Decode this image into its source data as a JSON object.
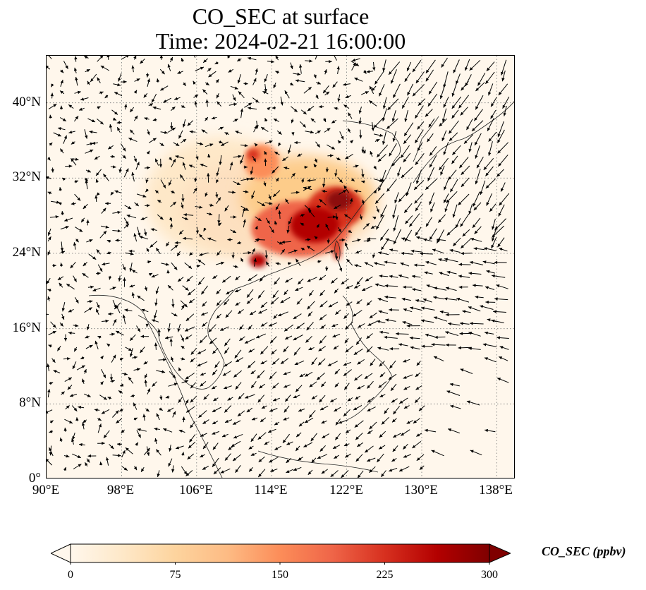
{
  "title": {
    "line1": "CO_SEC at surface",
    "line2": "Time: 2024-02-21 16:00:00"
  },
  "map": {
    "projection": "PlateCarree",
    "lon_range": [
      90,
      140
    ],
    "lat_range": [
      0,
      45
    ],
    "gridlines": "dotted",
    "lat_ticks": [
      "0°",
      "8°N",
      "16°N",
      "24°N",
      "32°N",
      "40°N"
    ],
    "lon_ticks": [
      "90°E",
      "98°E",
      "106°E",
      "114°E",
      "122°E",
      "130°E",
      "138°E"
    ],
    "field": "CO_SEC",
    "overlay": "surface wind vectors (quiver)",
    "max_region": "eastern China coast around 118°E–124°E, 24°N–32°N"
  },
  "colorbar": {
    "label": "CO_SEC (ppbv)",
    "cmap": "OrRd",
    "ticks": [
      "0",
      "75",
      "150",
      "225",
      "300"
    ],
    "vmin": 0,
    "vmax": 300,
    "extend": "both",
    "colors": [
      "#fff7ec",
      "#fee8c8",
      "#fdd49e",
      "#fdbb84",
      "#fc8d59",
      "#ef6548",
      "#d7301f",
      "#b30000",
      "#7f0000"
    ]
  }
}
